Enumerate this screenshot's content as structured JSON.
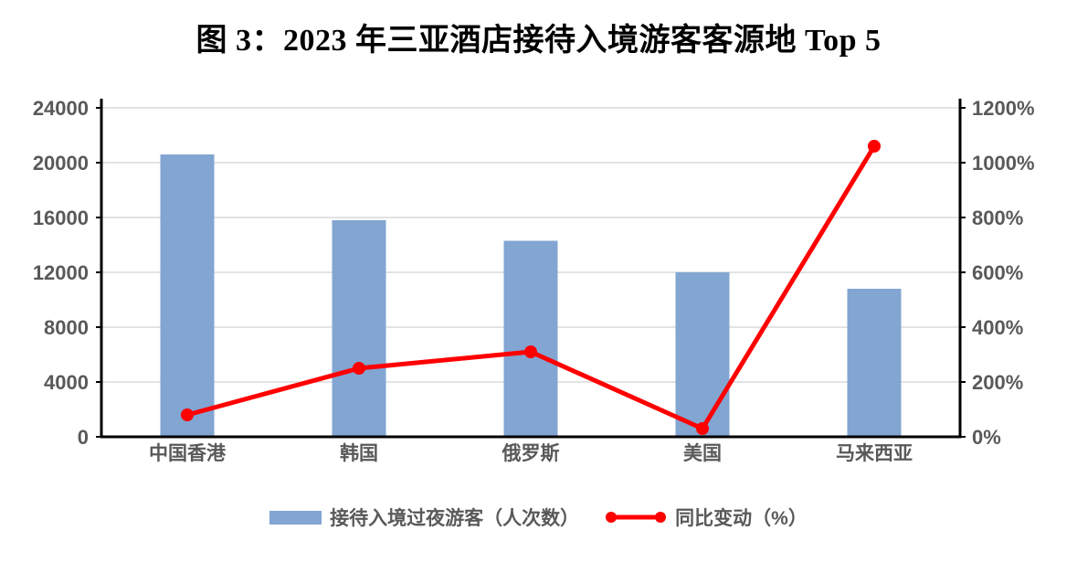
{
  "title": "图 3：2023 年三亚酒店接待入境游客客源地 Top 5",
  "colors": {
    "bar": "#82A5D2",
    "line": "#FF0000",
    "axis_text": "#595959",
    "gridline": "#E3E3E3",
    "spine": "#000000",
    "background": "#FFFFFF"
  },
  "legend": {
    "items": [
      {
        "label": "接待入境过夜游客（人次数）",
        "marker": "bar-swatch"
      },
      {
        "label": "同比变动（%）",
        "marker": "line-with-dots"
      }
    ]
  },
  "chart_data": {
    "type": "bar",
    "subtype": "combo-bar-line-dual-axis",
    "title": "图 3：2023 年三亚酒店接待入境游客客源地 Top 5",
    "categories": [
      "中国香港",
      "韩国",
      "俄罗斯",
      "美国",
      "马来西亚"
    ],
    "series": [
      {
        "name": "接待入境过夜游客（人次数）",
        "type": "bar",
        "axis": "left",
        "values": [
          20600,
          15800,
          14300,
          12000,
          10800
        ]
      },
      {
        "name": "同比变动（%）",
        "type": "line",
        "axis": "right",
        "values": [
          80,
          250,
          310,
          30,
          1060
        ]
      }
    ],
    "left_axis": {
      "min": 0,
      "max": 24000,
      "step": 4000,
      "tick_labels": [
        "0",
        "4000",
        "8000",
        "12000",
        "16000",
        "20000",
        "24000"
      ]
    },
    "right_axis": {
      "min": 0,
      "max": 1200,
      "step": 200,
      "tick_labels": [
        "0%",
        "200%",
        "400%",
        "600%",
        "800%",
        "1000%",
        "1200%"
      ]
    },
    "grid": true,
    "legend_position": "bottom"
  }
}
